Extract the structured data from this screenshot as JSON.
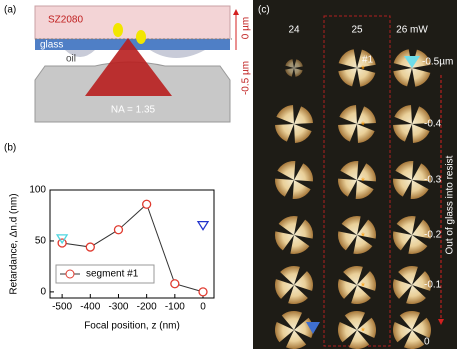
{
  "panel_a": {
    "label": "(a)",
    "resist": "SZ2080",
    "glass": "glass",
    "oil": "oil",
    "na": "NA = 1.35",
    "scale_top": "0 µm",
    "scale_bottom": "-0.5 µm"
  },
  "chart_data": {
    "type": "line",
    "label": "(b)",
    "x_label": "Focal position, z (nm)",
    "y_label": "Retardance, Δn.d (nm)",
    "x": [
      -500,
      -400,
      -300,
      -200,
      -100,
      0
    ],
    "series": [
      {
        "name": "segment #1",
        "color": "#e03a2f",
        "values": [
          48,
          44,
          61,
          86,
          8,
          0
        ]
      }
    ],
    "markers": [
      {
        "x": -500,
        "y": 52,
        "color": "#4fd6e0"
      },
      {
        "x": 0,
        "y": 65,
        "color": "#2233cc"
      }
    ],
    "xlim": [
      -543,
      39
    ],
    "ylim": [
      -6,
      100
    ],
    "xticks": [
      -500,
      -400,
      -300,
      -200,
      -100,
      0
    ],
    "yticks": [
      0,
      50,
      100
    ],
    "legend": "lower-left"
  },
  "panel_c": {
    "label": "(c)",
    "columns": [
      "24",
      "25",
      "26 mW"
    ],
    "segment": "#1",
    "rows": [
      "-0.5µm",
      "-0.4",
      "-0.3",
      "-0.2",
      "-0.1",
      "0"
    ],
    "arrow_label": "Out of glass into resist"
  }
}
